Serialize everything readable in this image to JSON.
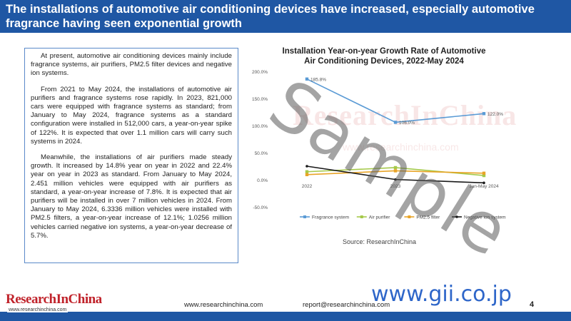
{
  "slide": {
    "title": "The installations of automotive air conditioning devices have increased, especially automotive fragrance having seen exponential growth",
    "paragraphs": [
      "At present, automotive air conditioning devices mainly include fragrance systems, air purifiers, PM2.5 filter devices and negative ion systems.",
      "From 2021 to May 2024, the installations of automotive air purifiers and fragrance systems rose rapidly. In 2023, 821,000 cars were equipped with fragrance systems as standard; from January to May 2024, fragrance systems as a standard configuration were installed in 512,000 cars, a year-on-year spike of 122%. It is expected that over 1.1 million cars will carry such systems in 2024.",
      "Meanwhile, the installations of air purifiers made steady growth. It increased by 14.8% year on year in 2022 and 22.4% year on year in 2023 as standard. From January to May 2024, 2.451 million vehicles were equipped with air purifiers as standard, a year-on-year increase of 7.8%. It is expected that air purifiers will be installed in over 7 million vehicles in 2024. From January to May 2024, 6.3336 million vehicles were installed with PM2.5 filters, a year-on-year increase of 12.1%; 1.0256 million vehicles carried negative ion systems, a year-on-year decrease of 5.7%."
    ],
    "source": "Source: ResearchInChina",
    "watermark_brand": "ResearchInChina",
    "watermark_url": "www.researchinchina.com",
    "sample_stamp": "Sample",
    "footer": {
      "logo": "ResearchInChina",
      "logo_url": "www.researchinchina.com",
      "website": "www.researchinchina.com",
      "email": "report@researchinchina.com",
      "gii": "www.gii.co.jp",
      "page": "4"
    }
  },
  "chart_data": {
    "type": "line",
    "title": "Installation Year-on-year Growth Rate of Automotive Air Conditioning Devices, 2022-May 2024",
    "categories": [
      "2022",
      "2023",
      "Jan-May 2024"
    ],
    "y_ticks": [
      "200.0%",
      "150.0%",
      "100.0%",
      "50.0%",
      "0.0%",
      "-50.0%"
    ],
    "ylim": [
      -50,
      200
    ],
    "grid": false,
    "legend_position": "bottom",
    "series": [
      {
        "name": "Fragrance system",
        "color": "#5b9bd5",
        "values": [
          185.8,
          106.0,
          122.0
        ],
        "labels": [
          "185.8%",
          "106.0%",
          "122.0%"
        ]
      },
      {
        "name": "Air purifier",
        "color": "#a5c94a",
        "values": [
          14.8,
          22.4,
          7.8
        ],
        "labels": [
          null,
          null,
          null
        ]
      },
      {
        "name": "PM2.5 filter",
        "color": "#e8a427",
        "values": [
          9.5,
          16.5,
          12.1
        ],
        "labels": [
          null,
          null,
          null
        ]
      },
      {
        "name": "Negative ion system",
        "color": "#1a1a1a",
        "values": [
          25.0,
          0.5,
          -5.7
        ],
        "labels": [
          null,
          null,
          null
        ]
      }
    ]
  }
}
